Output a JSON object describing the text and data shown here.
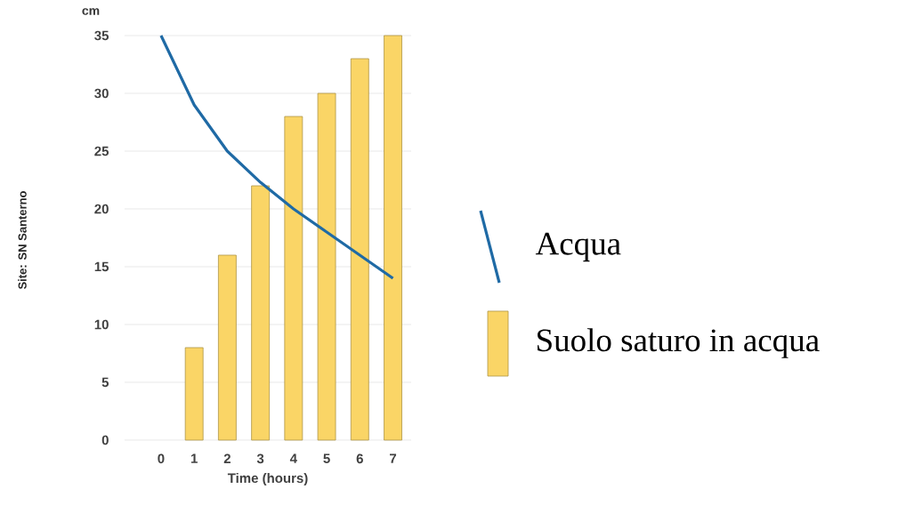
{
  "chart_data": {
    "type": "bar",
    "categories": [
      "0",
      "1",
      "2",
      "3",
      "4",
      "5",
      "6",
      "7"
    ],
    "xlabel": "Time (hours)",
    "ylabel": "cm",
    "annotations": [
      "Site: SN Santerno"
    ],
    "ylim": [
      0,
      35
    ],
    "yticks": [
      0,
      5,
      10,
      15,
      20,
      25,
      30,
      35
    ],
    "grid": "y",
    "legend": "right",
    "series": [
      {
        "name": "Acqua",
        "type": "line",
        "color": "#1f6aa5",
        "values": [
          35,
          29,
          25,
          22.3,
          20,
          18,
          16,
          14
        ]
      },
      {
        "name": "Suolo saturo in acqua",
        "color": "#fad566",
        "values": [
          0,
          8,
          16,
          22,
          28,
          30,
          33,
          35
        ]
      }
    ]
  }
}
